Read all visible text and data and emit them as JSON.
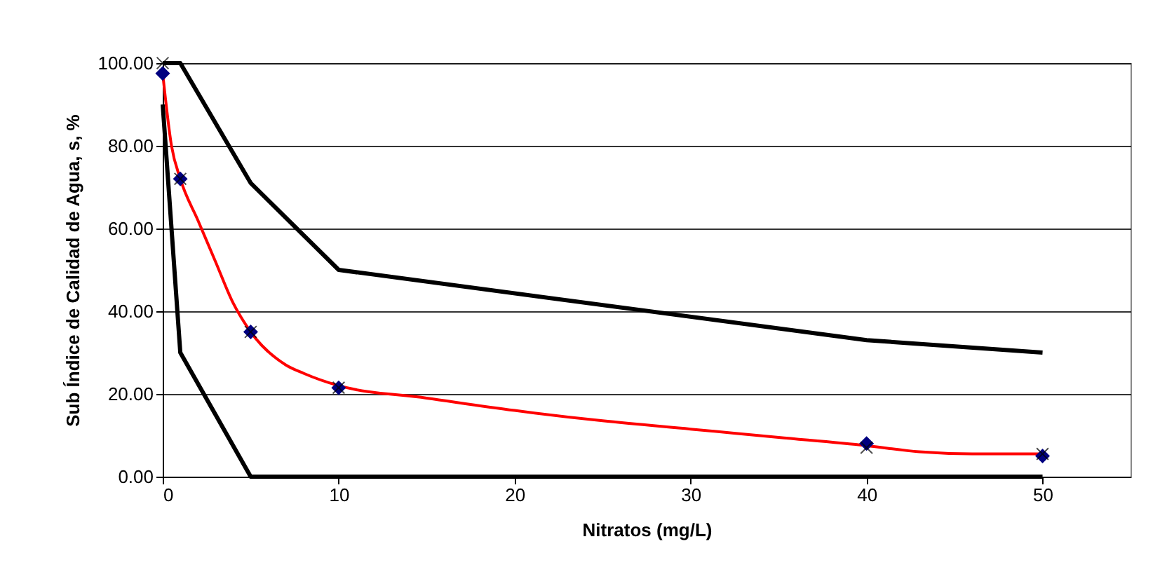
{
  "chart_data": {
    "type": "line",
    "xlabel": "Nitratos  (mg/L)",
    "ylabel": "Sub Índice de Calidad de Agua, s, %",
    "xlim": [
      0,
      55
    ],
    "xticks": [
      0,
      10,
      20,
      30,
      40,
      50
    ],
    "ylim": [
      0,
      100
    ],
    "yticks": [
      {
        "value": 0,
        "label": "0.00"
      },
      {
        "value": 20,
        "label": "20.00"
      },
      {
        "value": 40,
        "label": "40.00"
      },
      {
        "value": 60,
        "label": "60.00"
      },
      {
        "value": 80,
        "label": "80.00"
      },
      {
        "value": 100,
        "label": "100.00"
      }
    ],
    "grid": "y",
    "series": [
      {
        "color": "#000000",
        "marker": "none",
        "line_style": "solid",
        "x": [
          0,
          1,
          5,
          10,
          40,
          50
        ],
        "values": [
          100,
          100,
          71,
          50,
          33,
          30
        ]
      },
      {
        "color": "#000000",
        "marker": "none",
        "line_style": "solid",
        "x": [
          0,
          1,
          5,
          50
        ],
        "values": [
          90,
          30,
          0,
          0
        ]
      },
      {
        "color": "#ff0000",
        "marker": "none",
        "line_style": "solid",
        "x": [
          0,
          0.5,
          1,
          2,
          3,
          4,
          5,
          7,
          8,
          10,
          15,
          20,
          25,
          30,
          35,
          40,
          43,
          46,
          50
        ],
        "values": [
          97.5,
          80,
          72,
          62,
          52,
          42,
          35,
          27,
          25,
          22,
          19,
          16,
          13.5,
          11.5,
          9.5,
          7.5,
          6,
          5.5,
          5.5
        ]
      },
      {
        "type": "scatter",
        "color": "#000080",
        "marker": "diamond",
        "x": [
          0,
          1,
          5,
          10,
          40,
          50
        ],
        "values": [
          97.5,
          72,
          35,
          21.5,
          8,
          5
        ]
      },
      {
        "type": "scatter",
        "color": "#000000",
        "marker": "cross",
        "x": [
          0,
          1,
          5,
          10,
          40,
          50
        ],
        "values": [
          100,
          72,
          35,
          21.5,
          7,
          5.5
        ]
      }
    ]
  }
}
